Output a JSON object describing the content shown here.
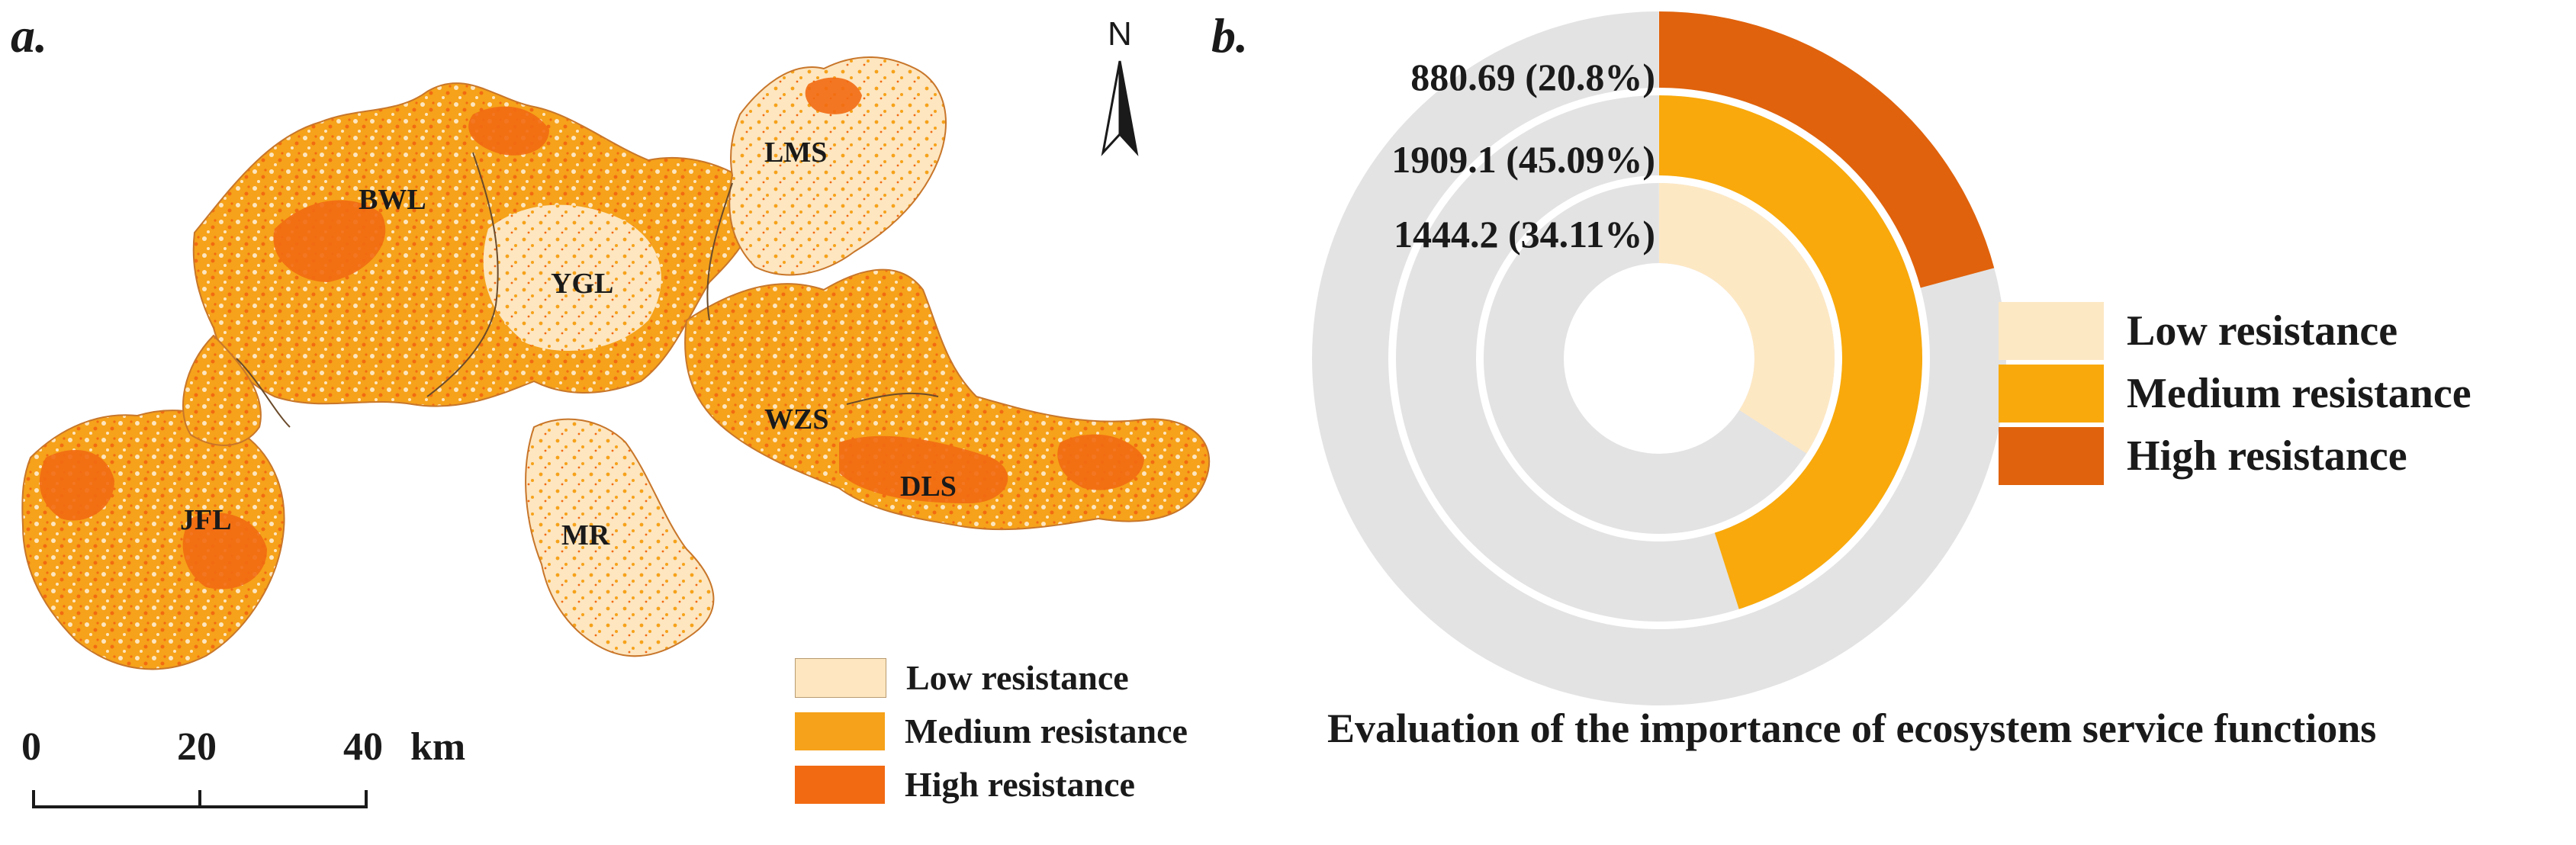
{
  "panel_a": {
    "label": "a.",
    "north_label": "N",
    "regions": [
      {
        "id": "bwl",
        "label": "BWL"
      },
      {
        "id": "lms",
        "label": "LMS"
      },
      {
        "id": "ygl",
        "label": "YGL"
      },
      {
        "id": "wzs",
        "label": "WZS"
      },
      {
        "id": "dls",
        "label": "DLS"
      },
      {
        "id": "jfl",
        "label": "JFL"
      },
      {
        "id": "mr",
        "label": "MR"
      }
    ],
    "legend": [
      {
        "label": "Low resistance",
        "color": "#fde6c0"
      },
      {
        "label": "Medium resistance",
        "color": "#f6a21a"
      },
      {
        "label": "High resistance",
        "color": "#f26a12"
      }
    ],
    "scale_bar": {
      "ticks": [
        "0",
        "20",
        "40"
      ],
      "unit": "km"
    }
  },
  "panel_b": {
    "label": "b.",
    "caption": "Evaluation of the importance of ecosystem service functions",
    "legend": [
      {
        "label": "Low resistance",
        "color": "#fde8c4"
      },
      {
        "label": "Medium resistance",
        "color": "#f9a90b"
      },
      {
        "label": "High resistance",
        "color": "#e0620c"
      }
    ]
  },
  "chart_data": {
    "type": "pie",
    "subtype": "radial-ring",
    "title": "Evaluation of the importance of ecosystem service functions",
    "track_color": "#e3e3e3",
    "series": [
      {
        "name": "Low resistance",
        "value": 1444.2,
        "percent": 34.11,
        "label": "1444.2 (34.11%)",
        "color": "#fde8c4"
      },
      {
        "name": "Medium resistance",
        "value": 1909.1,
        "percent": 45.09,
        "label": "1909.1 (45.09%)",
        "color": "#f9a90b"
      },
      {
        "name": "High resistance",
        "value": 880.69,
        "percent": 20.8,
        "label": "880.69 (20.8%)",
        "color": "#e0620c"
      }
    ],
    "legend_position": "right"
  }
}
